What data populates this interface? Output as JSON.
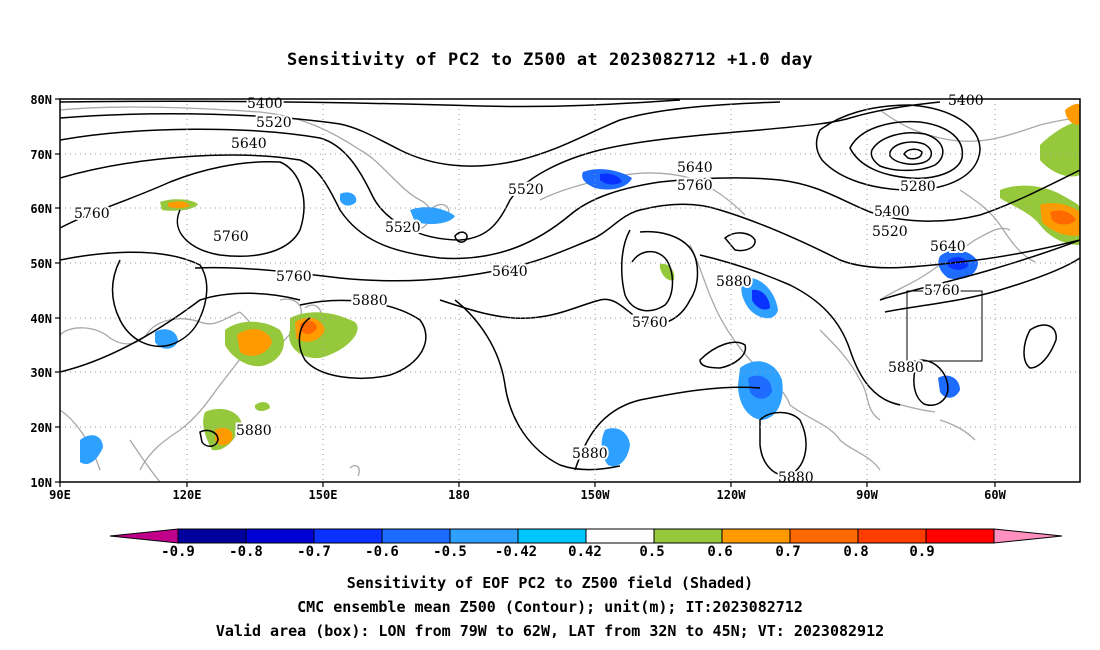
{
  "title": "Sensitivity of PC2 to Z500 at 2023082712 +1.0 day",
  "axes": {
    "lat_ticks": [
      "80N",
      "70N",
      "60N",
      "50N",
      "40N",
      "30N",
      "20N",
      "10N"
    ],
    "lon_ticks": [
      "90E",
      "120E",
      "150E",
      "180",
      "150W",
      "120W",
      "90W",
      "60W"
    ]
  },
  "contour_labels": [
    "5400",
    "5520",
    "5640",
    "5760",
    "5880",
    "5280"
  ],
  "colorbar": {
    "labels": [
      "-0.9",
      "-0.8",
      "-0.7",
      "-0.6",
      "-0.5",
      "-0.42",
      "0.42",
      "0.5",
      "0.6",
      "0.7",
      "0.8",
      "0.9"
    ],
    "colors": [
      "#c0008b",
      "#00009e",
      "#0000d6",
      "#0a32ff",
      "#1e6cff",
      "#2ea0ff",
      "#00c8ff",
      "#ffffff",
      "#96c83c",
      "#ff9a00",
      "#ff6a00",
      "#ff3c00",
      "#ff0000",
      "#ff90c0"
    ]
  },
  "valid_box": {
    "lon_from": "79W",
    "lon_to": "62W",
    "lat_from": "32N",
    "lat_to": "45N"
  },
  "captions": {
    "line1": "Sensitivity of EOF PC2 to Z500 field (Shaded)",
    "line2": "CMC ensemble mean Z500 (Contour); unit(m); IT:2023082712",
    "line3": "Valid area (box): LON from 79W to 62W, LAT from 32N to 45N; VT: 2023082912"
  }
}
